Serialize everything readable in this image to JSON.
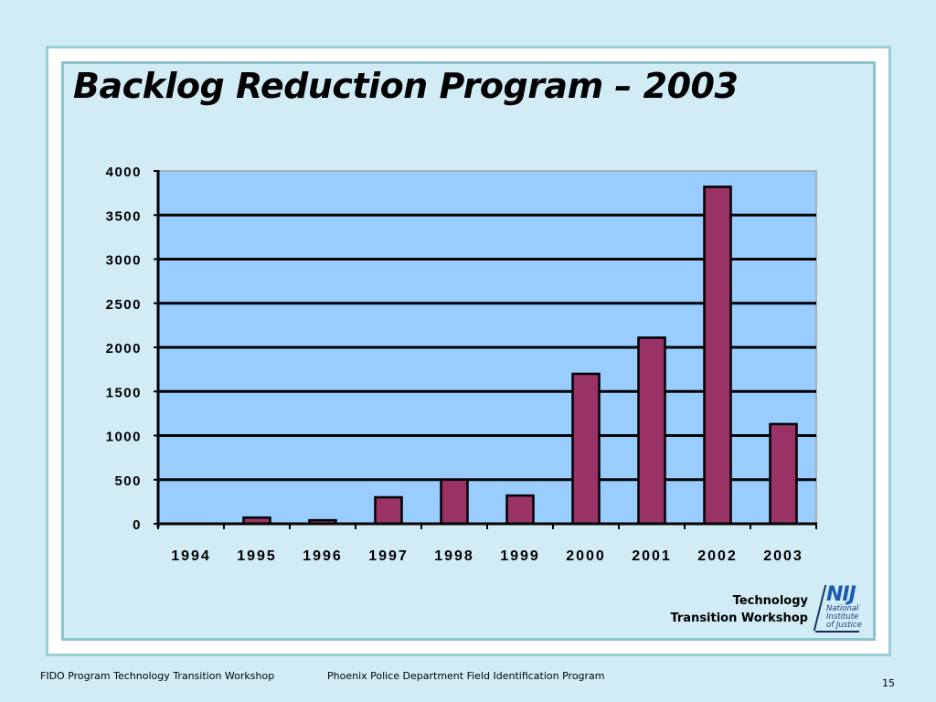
{
  "slide": {
    "title": "Backlog Reduction Program – 2003",
    "page_number": "15"
  },
  "footer": {
    "left": "FIDO Program Technology Transition Workshop",
    "middle": "Phoenix Police Department Field Identification Program"
  },
  "branding": {
    "line1": "Technology",
    "line2": "Transition Workshop",
    "logo_mark": "NIJ",
    "logo_sub1": "National",
    "logo_sub2": "Institute",
    "logo_sub3": "of Justice"
  },
  "colors": {
    "plot_bg": "#99ccff",
    "bar_fill": "#993366",
    "bar_stroke": "#000000",
    "grid": "#000000",
    "nij_blue": "#1e5ab4"
  },
  "chart_data": {
    "type": "bar",
    "title": "Backlog Reduction Program – 2003",
    "xlabel": "",
    "ylabel": "",
    "categories": [
      "1994",
      "1995",
      "1996",
      "1997",
      "1998",
      "1999",
      "2000",
      "2001",
      "2002",
      "2003"
    ],
    "values": [
      0,
      70,
      40,
      300,
      500,
      320,
      1700,
      2110,
      3820,
      1130
    ],
    "ylim": [
      0,
      4000
    ],
    "yticks": [
      0,
      500,
      1000,
      1500,
      2000,
      2500,
      3000,
      3500,
      4000
    ],
    "ytick_labels": [
      "0",
      "500",
      "1000",
      "1500",
      "2000",
      "2500",
      "3000",
      "3500",
      "4000"
    ],
    "grid": true,
    "legend": "none"
  }
}
